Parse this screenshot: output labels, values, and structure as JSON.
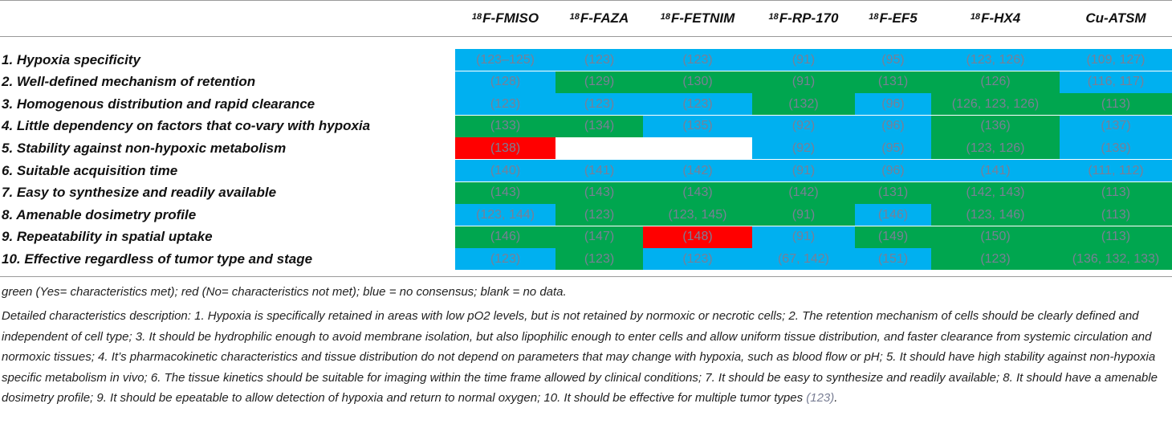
{
  "table": {
    "columns": [
      {
        "sup": "18",
        "name": "F-FMISO"
      },
      {
        "sup": "18",
        "name": "F-FAZA"
      },
      {
        "sup": "18",
        "name": "F-FETNIM"
      },
      {
        "sup": "18",
        "name": "F-RP-170"
      },
      {
        "sup": "18",
        "name": "F-EF5"
      },
      {
        "sup": "18",
        "name": "F-HX4"
      },
      {
        "sup": "",
        "name": "Cu-ATSM"
      }
    ],
    "rows": [
      {
        "label": "1. Hypoxia specificity",
        "cells": [
          [
            "(123–125)",
            "blue"
          ],
          [
            "(123)",
            "blue"
          ],
          [
            "(123)",
            "blue"
          ],
          [
            "(91)",
            "blue"
          ],
          [
            "(95)",
            "blue"
          ],
          [
            "(123, 126)",
            "blue"
          ],
          [
            "(109, 127)",
            "blue"
          ]
        ]
      },
      {
        "label": "2. Well-defined mechanism of retention",
        "cells": [
          [
            "(128)",
            "blue"
          ],
          [
            "(129)",
            "green"
          ],
          [
            "(130)",
            "green"
          ],
          [
            "(91)",
            "green"
          ],
          [
            "(131)",
            "green"
          ],
          [
            "(126)",
            "green"
          ],
          [
            "(116, 117)",
            "blue"
          ]
        ]
      },
      {
        "label": "3. Homogenous distribution and rapid clearance",
        "cells": [
          [
            "(123)",
            "blue"
          ],
          [
            "(123)",
            "blue"
          ],
          [
            "(123)",
            "blue"
          ],
          [
            "(132)",
            "green"
          ],
          [
            "(96)",
            "blue"
          ],
          [
            "(126, 123, 126)",
            "green"
          ],
          [
            "(113)",
            "green"
          ]
        ]
      },
      {
        "label": "4. Little dependency on factors that co-vary with hypoxia",
        "cells": [
          [
            "(133)",
            "green"
          ],
          [
            "(134)",
            "green"
          ],
          [
            "(135)",
            "blue"
          ],
          [
            "(92)",
            "blue"
          ],
          [
            "(96)",
            "blue"
          ],
          [
            "(136)",
            "green"
          ],
          [
            "(137)",
            "blue"
          ]
        ]
      },
      {
        "label": "5. Stability against non-hypoxic metabolism",
        "cells": [
          [
            "(138)",
            "red"
          ],
          [
            "",
            "blank"
          ],
          [
            "",
            "blank"
          ],
          [
            "(92)",
            "blue"
          ],
          [
            "(95)",
            "blue"
          ],
          [
            "(123, 126)",
            "green"
          ],
          [
            "(139)",
            "blue"
          ]
        ]
      },
      {
        "label": "6. Suitable acquisition time",
        "cells": [
          [
            "(140)",
            "blue"
          ],
          [
            "(141)",
            "blue"
          ],
          [
            "(142)",
            "blue"
          ],
          [
            "(91)",
            "blue"
          ],
          [
            "(96)",
            "blue"
          ],
          [
            "(141)",
            "blue"
          ],
          [
            "(111, 112)",
            "blue"
          ]
        ]
      },
      {
        "label": "7. Easy to synthesize and readily available",
        "cells": [
          [
            "(143)",
            "green"
          ],
          [
            "(143)",
            "green"
          ],
          [
            "(143)",
            "green"
          ],
          [
            "(142)",
            "green"
          ],
          [
            "(131)",
            "green"
          ],
          [
            "(142, 143)",
            "green"
          ],
          [
            "(113)",
            "green"
          ]
        ]
      },
      {
        "label": "8. Amenable dosimetry profile",
        "cells": [
          [
            "(123, 144)",
            "blue"
          ],
          [
            "(123)",
            "green"
          ],
          [
            "(123, 145)",
            "green"
          ],
          [
            "(91)",
            "green"
          ],
          [
            "(146)",
            "blue"
          ],
          [
            "(123, 146)",
            "green"
          ],
          [
            "(113)",
            "green"
          ]
        ]
      },
      {
        "label": "9. Repeatability in spatial uptake",
        "cells": [
          [
            "(146)",
            "green"
          ],
          [
            "(147)",
            "green"
          ],
          [
            "(148)",
            "red"
          ],
          [
            "(91)",
            "blue"
          ],
          [
            "(149)",
            "green"
          ],
          [
            "(150)",
            "green"
          ],
          [
            "(113)",
            "green"
          ]
        ]
      },
      {
        "label": "10. Effective regardless of tumor type and stage",
        "cells": [
          [
            "(123)",
            "blue"
          ],
          [
            "(123)",
            "green"
          ],
          [
            "(123)",
            "blue"
          ],
          [
            "(67, 142)",
            "blue"
          ],
          [
            "(151)",
            "blue"
          ],
          [
            "(123)",
            "green"
          ],
          [
            "(136, 132, 133)",
            "green"
          ]
        ]
      }
    ]
  },
  "footnote": {
    "legend": "green (Yes= characteristics met); red (No= characteristics not met); blue = no consensus; blank = no data.",
    "detail": "Detailed characteristics description: 1. Hypoxia is specifically retained in areas with low pO2 levels, but is not retained by normoxic or necrotic cells; 2. The retention mechanism of cells should be clearly defined and independent of cell type; 3. It should be hydrophilic enough to avoid membrane isolation, but also lipophilic enough to enter cells and allow uniform tissue distribution, and faster clearance from systemic circulation and normoxic tissues; 4. It’s pharmacokinetic characteristics and tissue distribution do not depend on parameters that may change with hypoxia, such as blood flow or pH; 5. It should have high stability against non-hypoxia specific metabolism in vivo; 6. The tissue kinetics should be suitable for imaging within the time frame allowed by clinical conditions; 7. It should be easy to synthesize and readily available; 8. It should have a amenable dosimetry profile; 9. It should be epeatable to allow detection of hypoxia and return to normal oxygen; 10. It should be effective for multiple tumor types ",
    "detail_ref": "(123)",
    "detail_end": "."
  },
  "colors": {
    "green": "#00a64f",
    "red": "#ff0000",
    "blue": "#00b0f0",
    "blank": "#ffffff"
  }
}
